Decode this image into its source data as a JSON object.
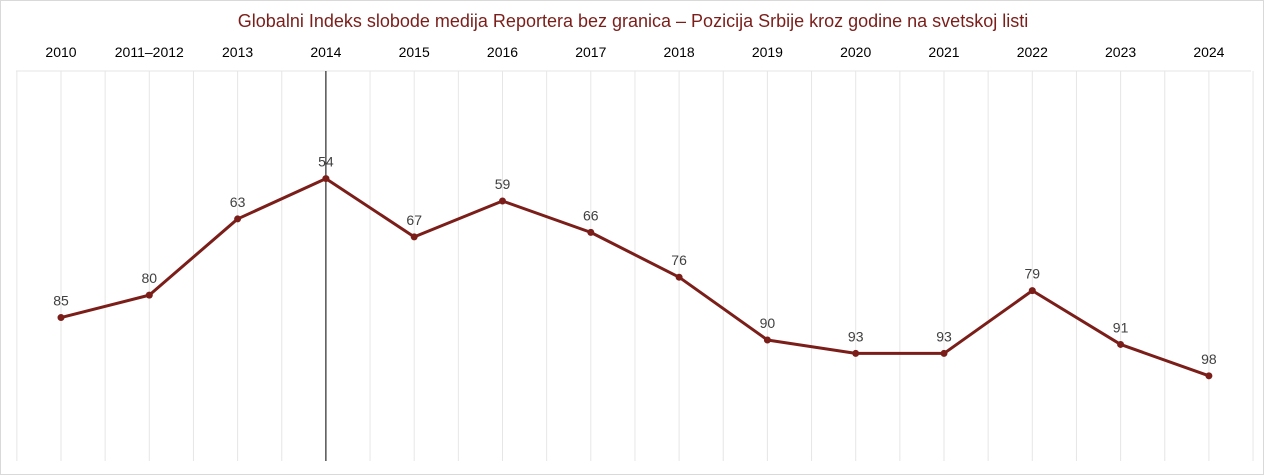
{
  "chart_data": {
    "type": "line",
    "title": "Globalni Indeks slobode medija Reportera bez granica – Pozicija Srbije kroz godine na svetskoj listi",
    "categories": [
      "2010",
      "2011–2012",
      "2013",
      "2014",
      "2015",
      "2016",
      "2017",
      "2018",
      "2019",
      "2020",
      "2021",
      "2022",
      "2023",
      "2024"
    ],
    "series": [
      {
        "values": [
          85,
          80,
          63,
          54,
          67,
          59,
          66,
          76,
          90,
          93,
          93,
          79,
          91,
          98
        ]
      }
    ],
    "y_reversed": true,
    "ylim": [
      117,
      30
    ],
    "highlight_category": "2014",
    "grid": "vertical",
    "xaxis_position": "top",
    "colors": {
      "line": "#7b1e1a",
      "grid": "#e6e6e6",
      "highlight": "#000000"
    }
  }
}
